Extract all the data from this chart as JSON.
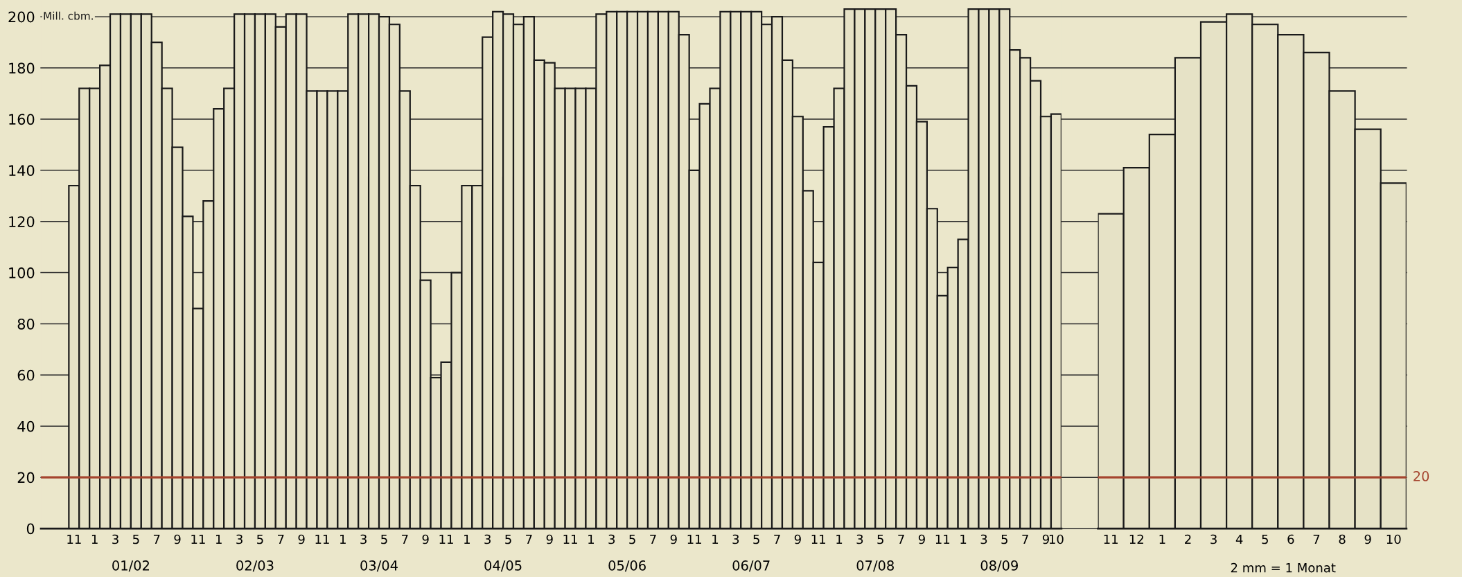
{
  "chart_data": [
    {
      "type": "bar",
      "ylabel": "Mill. cbm.",
      "categories": [
        "11",
        null,
        "1",
        null,
        "3",
        null,
        "5",
        null,
        "7",
        null,
        "9",
        null,
        "11",
        null,
        "1",
        null,
        "3",
        null,
        "5",
        null,
        "7",
        null,
        "9",
        null,
        "11",
        null,
        "1",
        null,
        "3",
        null,
        "5",
        null,
        "7",
        null,
        "9",
        null,
        "11",
        null,
        "1",
        null,
        "3",
        null,
        "5",
        null,
        "7",
        null,
        "9",
        null,
        "11",
        null,
        "1",
        null,
        "3",
        null,
        "5",
        null,
        "7",
        null,
        "9",
        null,
        "11",
        null,
        "1",
        null,
        "3",
        null,
        "5",
        null,
        "7",
        null,
        "9",
        null,
        "11",
        null,
        "1",
        null,
        "3",
        null,
        "5",
        null,
        "7",
        null,
        "9",
        null,
        "11",
        null,
        "1",
        null,
        "3",
        null,
        "5",
        null,
        "7",
        null,
        "9",
        "10"
      ],
      "values": [
        134,
        172,
        172,
        181,
        201,
        201,
        201,
        201,
        190,
        172,
        149,
        122,
        86,
        128,
        164,
        172,
        201,
        201,
        201,
        201,
        196,
        201,
        201,
        171,
        171,
        171,
        171,
        201,
        201,
        201,
        200,
        197,
        171,
        134,
        97,
        59,
        65,
        100,
        134,
        134,
        192,
        202,
        201,
        197,
        200,
        183,
        182,
        172,
        172,
        172,
        172,
        201,
        202,
        202,
        202,
        202,
        202,
        202,
        202,
        193,
        140,
        166,
        172,
        202,
        202,
        202,
        202,
        197,
        200,
        183,
        161,
        132,
        104,
        157,
        172,
        203,
        203,
        203,
        203,
        203,
        193,
        173,
        159,
        125,
        91,
        102,
        113,
        203,
        203,
        203,
        203,
        187,
        184,
        175,
        161,
        162
      ],
      "color": "#e6e2c6",
      "ylim": [
        0,
        206
      ],
      "yticks": [
        0,
        20,
        40,
        60,
        80,
        100,
        120,
        140,
        160,
        180,
        200
      ],
      "grid": "y",
      "ref_lines": [
        {
          "axis": "y",
          "value": 20,
          "color": "#a5442e"
        }
      ],
      "annotations": [
        "01/02",
        "02/03",
        "03/04",
        "04/05",
        "05/06",
        "06/07",
        "07/08",
        "08/09"
      ]
    },
    {
      "type": "bar",
      "categories": [
        "11",
        "12",
        "1",
        "2",
        "3",
        "4",
        "5",
        "6",
        "7",
        "8",
        "9",
        "10"
      ],
      "values": [
        123,
        141,
        154,
        184,
        198,
        201,
        197,
        193,
        186,
        171,
        156,
        135
      ],
      "color": "#e6e2c6",
      "ylim": [
        0,
        206
      ],
      "yticks": [
        0,
        20,
        40,
        60,
        80,
        100,
        120,
        140,
        160,
        180,
        200
      ],
      "tick_labels": "x",
      "ref_lines": [
        {
          "axis": "y",
          "value": 20,
          "label": "20",
          "color": "#a5442e"
        }
      ],
      "annotations": [
        "2 mm = 1 Monat"
      ]
    }
  ]
}
